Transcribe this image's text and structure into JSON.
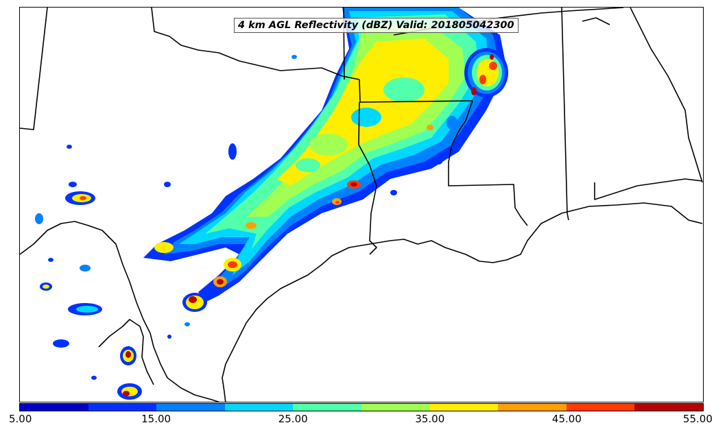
{
  "title": "4 km AGL Reflectivity (dBZ) Valid: 201805042300",
  "colorbar": {
    "colors": [
      "#0000c8",
      "#0032ff",
      "#0082ff",
      "#00d8ff",
      "#52ffaa",
      "#a0ff52",
      "#ffee00",
      "#ffa000",
      "#ff3c00",
      "#b80000"
    ],
    "tick_labels": [
      "5.00",
      "15.00",
      "25.00",
      "35.00",
      "45.00",
      "55.00"
    ],
    "min": 5,
    "max": 55,
    "interval": 5
  }
}
